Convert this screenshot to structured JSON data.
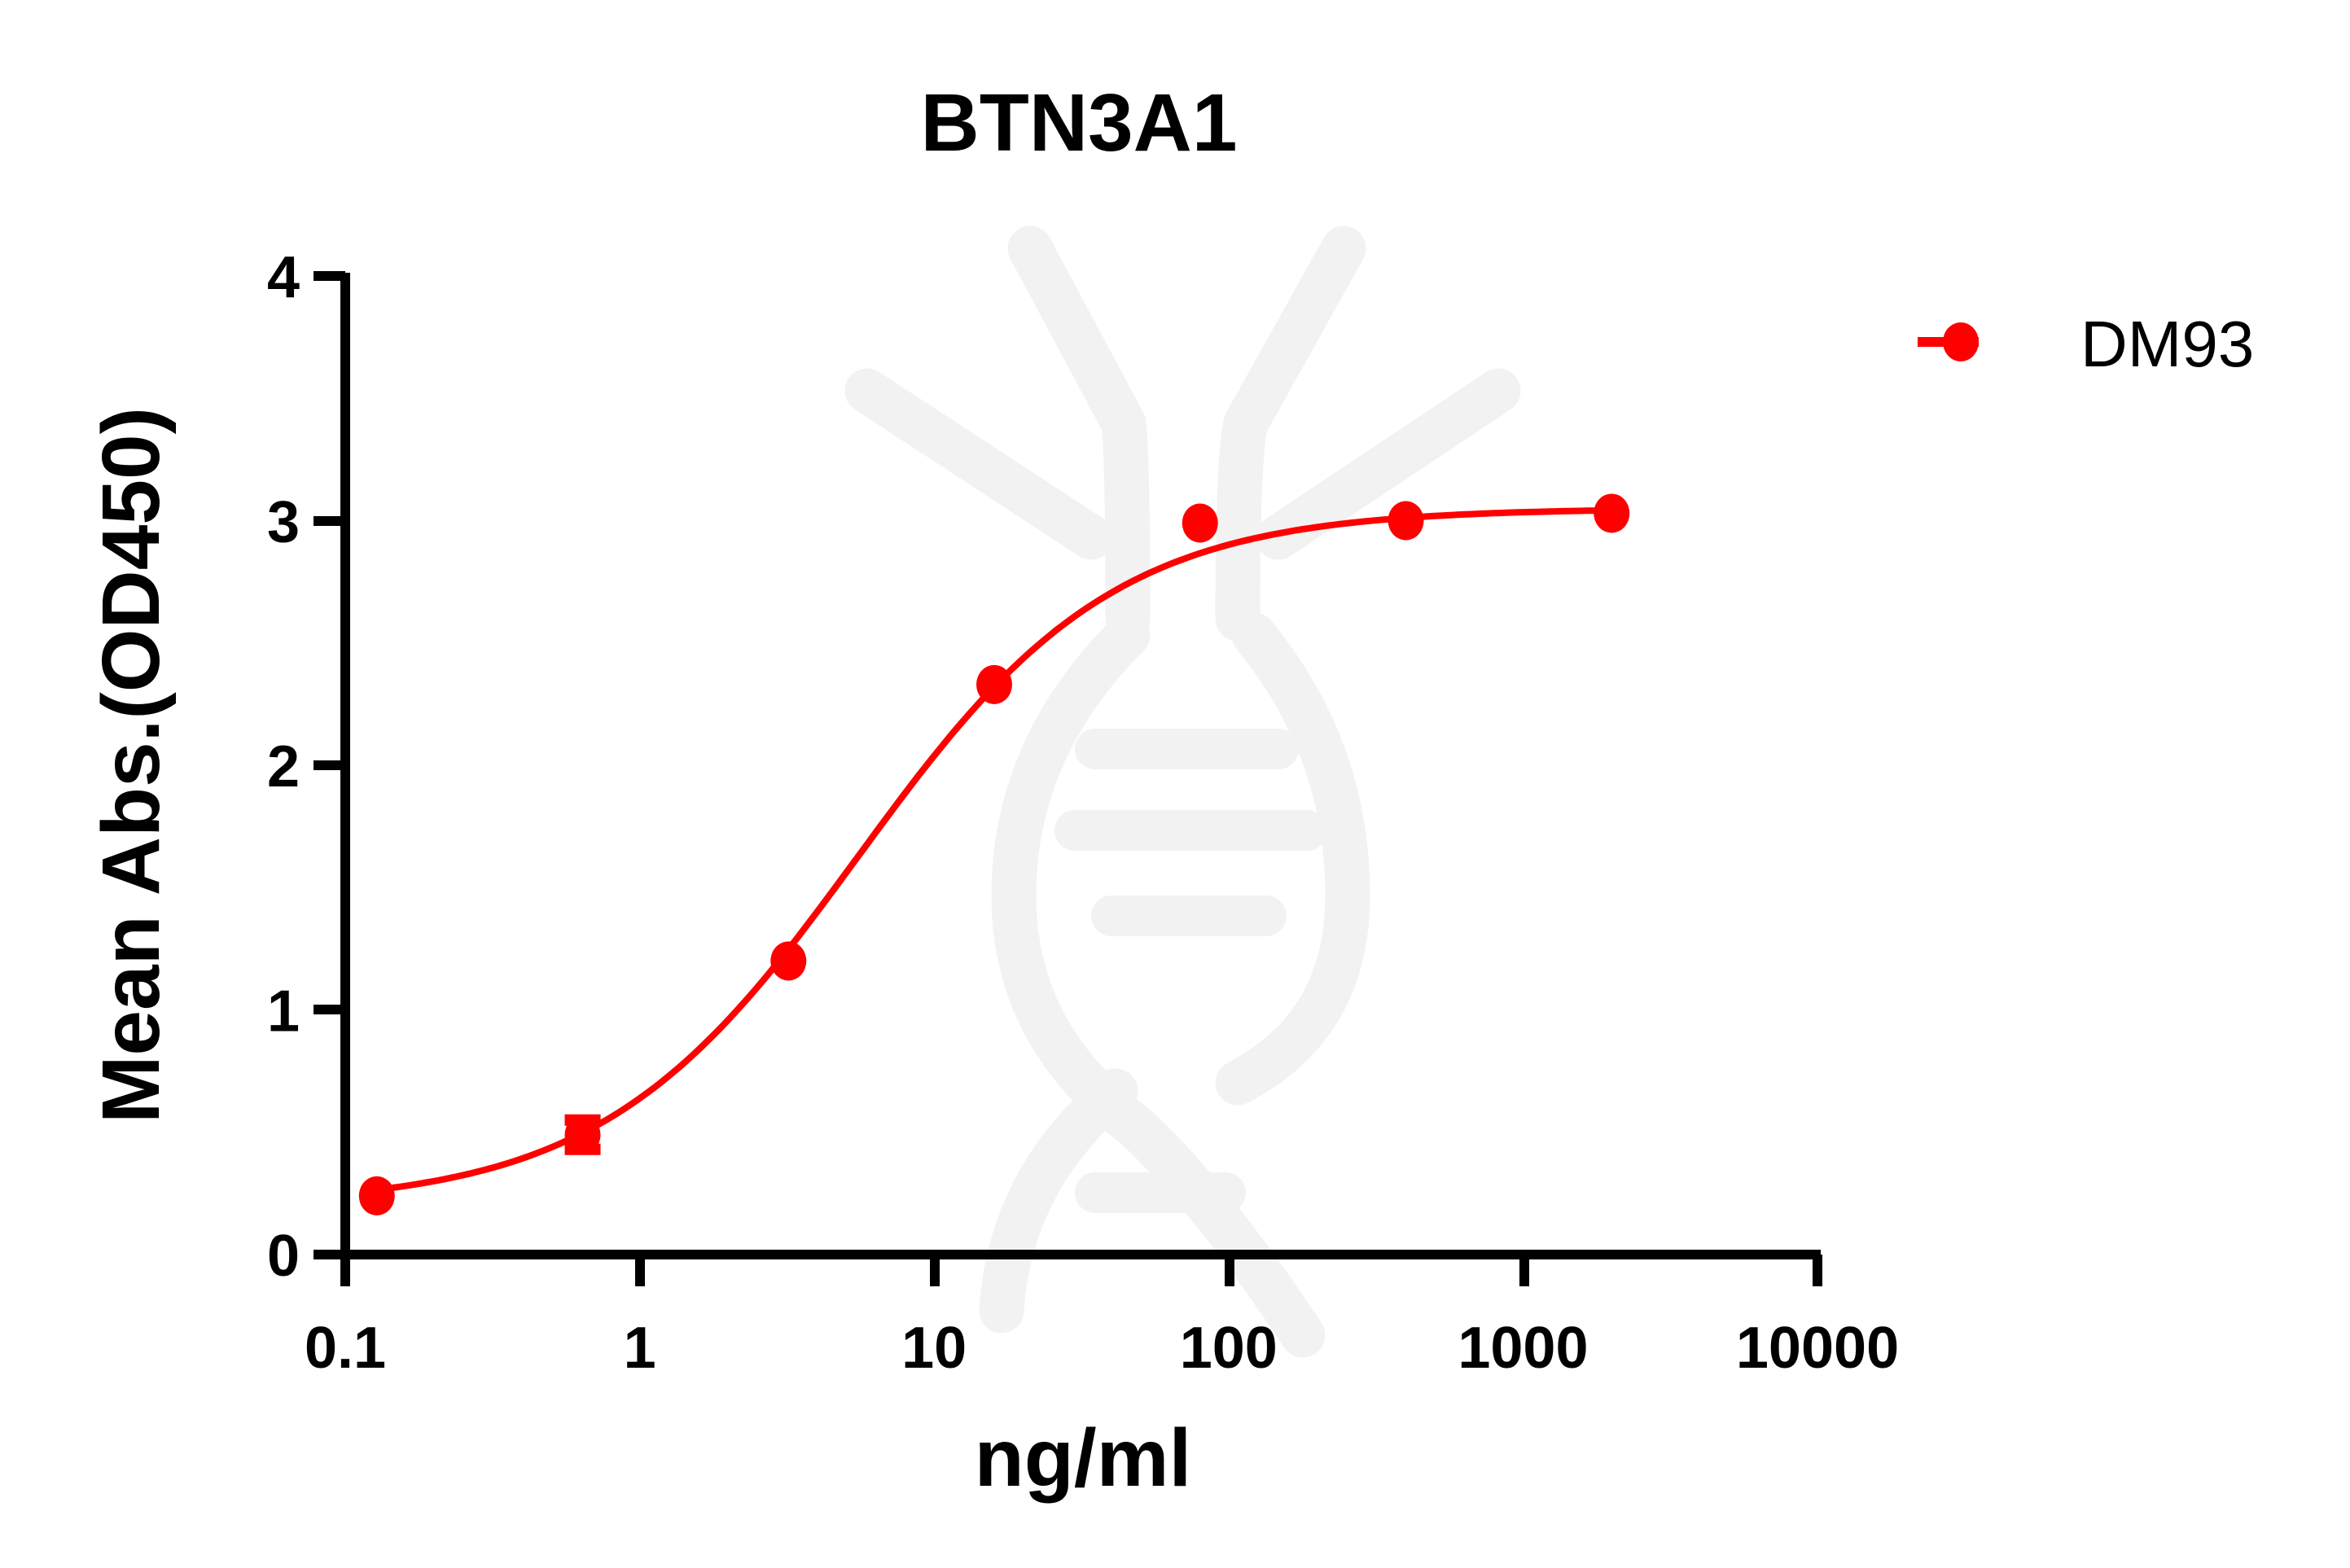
{
  "chart_data": {
    "type": "line",
    "title": "BTN3A1",
    "xlabel": "ng/ml",
    "ylabel": "Mean Abs.(OD450)",
    "xscale": "log",
    "xlim": [
      0.1,
      10000
    ],
    "ylim": [
      0,
      4
    ],
    "xticks": [
      "0.1",
      "1",
      "10",
      "100",
      "1000",
      "10000"
    ],
    "yticks": [
      "0",
      "1",
      "2",
      "3",
      "4"
    ],
    "grid": false,
    "legend_position": "top-right",
    "series": [
      {
        "name": "DM93",
        "color": "#ff0000",
        "x": [
          0.128,
          0.64,
          3.2,
          16,
          80,
          400,
          2000
        ],
        "y": [
          0.24,
          0.49,
          1.2,
          2.33,
          2.99,
          3.0,
          3.03
        ],
        "error": [
          0.02,
          0.06,
          0.02,
          0.02,
          0.02,
          0.02,
          0.02
        ],
        "fit": "4PL sigmoid",
        "fit_params": {
          "bottom": 0.2,
          "top": 3.05,
          "ec50": 5.5,
          "hill": 1.0
        }
      }
    ]
  },
  "watermark": "dna-logo"
}
